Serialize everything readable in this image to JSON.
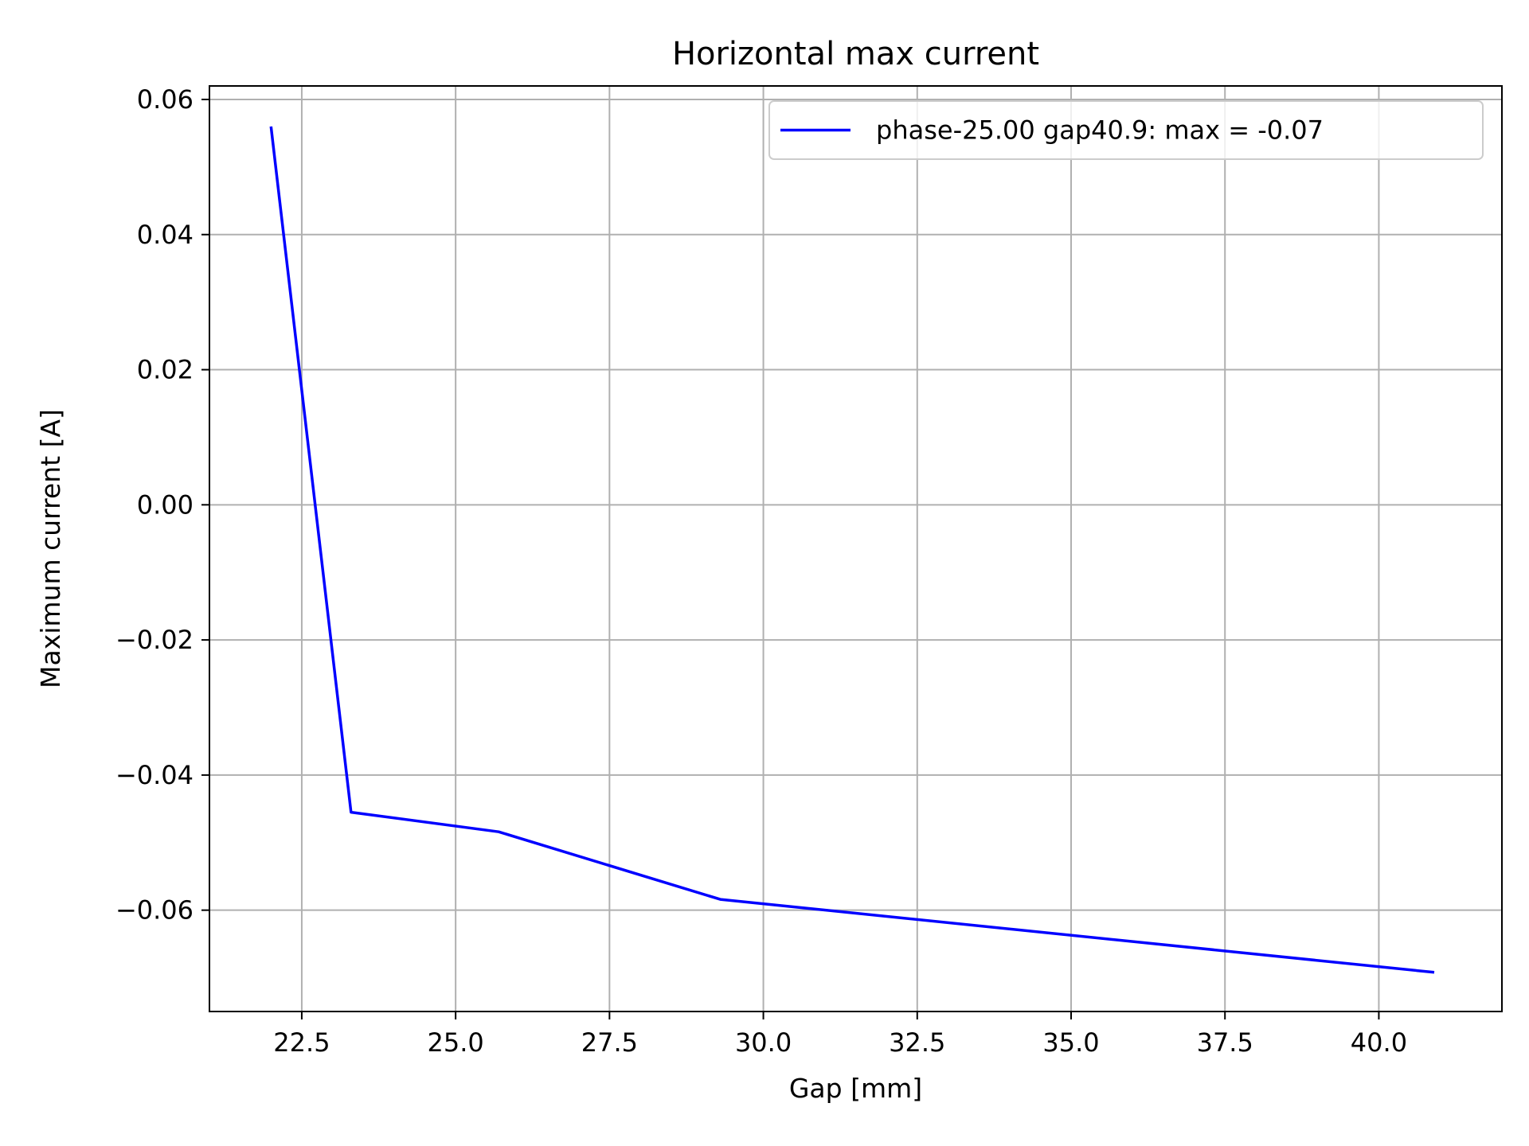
{
  "chart_data": {
    "type": "line",
    "title": "Horizontal max current",
    "xlabel": "Gap [mm]",
    "ylabel": "Maximum current [A]",
    "xlim": [
      21.0,
      42.0
    ],
    "ylim": [
      -0.075,
      0.062
    ],
    "xticks": [
      22.5,
      25.0,
      27.5,
      30.0,
      32.5,
      35.0,
      37.5,
      40.0
    ],
    "xtick_labels": [
      "22.5",
      "25.0",
      "27.5",
      "30.0",
      "32.5",
      "35.0",
      "37.5",
      "40.0"
    ],
    "yticks": [
      0.06,
      0.04,
      0.02,
      0.0,
      -0.02,
      -0.04,
      -0.06
    ],
    "ytick_labels": [
      "0.06",
      "0.04",
      "0.02",
      "0.00",
      "−0.02",
      "−0.04",
      "−0.06"
    ],
    "grid": true,
    "legend_position": "top-right",
    "series": [
      {
        "name": "phase-25.00 gap40.9: max = -0.07",
        "color": "#0000ff",
        "x": [
          22.0,
          23.3,
          25.7,
          29.3,
          40.9
        ],
        "y": [
          0.056,
          -0.0455,
          -0.0484,
          -0.0584,
          -0.0692
        ]
      }
    ]
  }
}
